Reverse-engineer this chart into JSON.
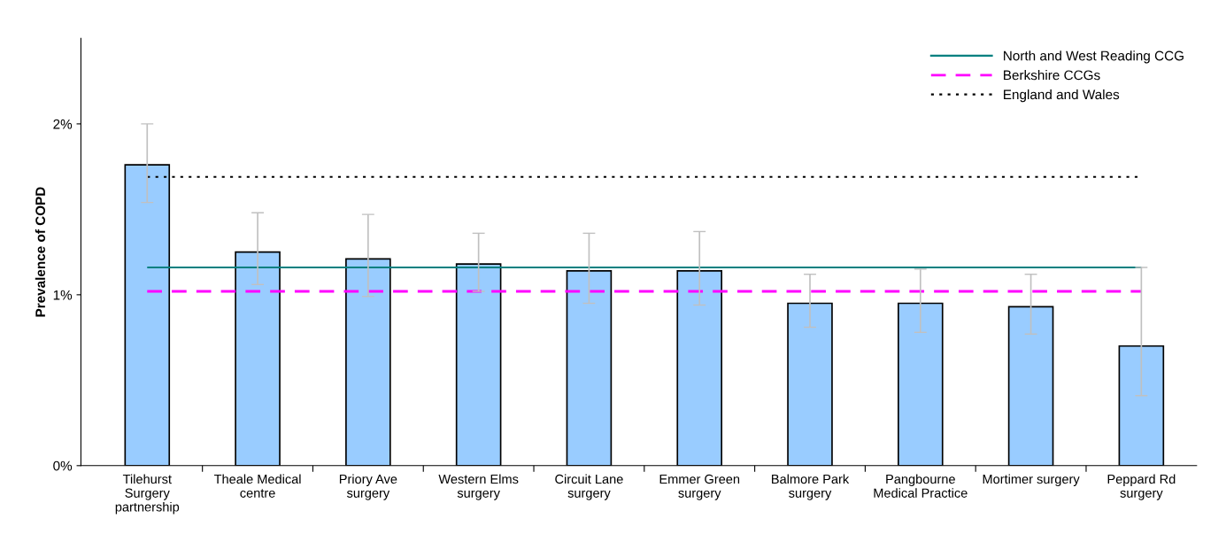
{
  "chart_data": {
    "type": "bar",
    "ylabel": "Prevalence of COPD",
    "categories": [
      "Tilehurst\nSurgery\npartnership",
      "Theale Medical\ncentre",
      "Priory Ave\nsurgery",
      "Western Elms\nsurgery",
      "Circuit Lane\nsurgery",
      "Emmer Green\nsurgery",
      "Balmore Park\nsurgery",
      "Pangbourne\nMedical Practice",
      "Mortimer surgery",
      "Peppard Rd\nsurgery"
    ],
    "values": [
      1.76,
      1.25,
      1.21,
      1.18,
      1.14,
      1.14,
      0.95,
      0.95,
      0.93,
      0.7
    ],
    "color": "#99ccff",
    "errors": [
      [
        1.54,
        2.0
      ],
      [
        1.06,
        1.48
      ],
      [
        0.99,
        1.47
      ],
      [
        1.02,
        1.36
      ],
      [
        0.95,
        1.36
      ],
      [
        0.94,
        1.37
      ],
      [
        0.81,
        1.12
      ],
      [
        0.78,
        1.15
      ],
      [
        0.77,
        1.12
      ],
      [
        0.41,
        1.16
      ]
    ],
    "ylim": [
      0,
      2.5
    ],
    "yticks": [
      {
        "value": 0,
        "label": "0%"
      },
      {
        "value": 1,
        "label": "1%"
      },
      {
        "value": 2,
        "label": "2%"
      }
    ],
    "ref_lines": [
      {
        "axis": "y",
        "value": 1.16,
        "label": "North and West Reading CCG",
        "color": "#008080",
        "line_style": "solid"
      },
      {
        "axis": "y",
        "value": 1.02,
        "label": "Berkshire CCGs",
        "color": "#ff00ff",
        "line_style": "dashed"
      },
      {
        "axis": "y",
        "value": 1.69,
        "label": "England and Wales",
        "color": "#000000",
        "line_style": "dotted"
      }
    ],
    "grid": false,
    "legend": "top right"
  }
}
